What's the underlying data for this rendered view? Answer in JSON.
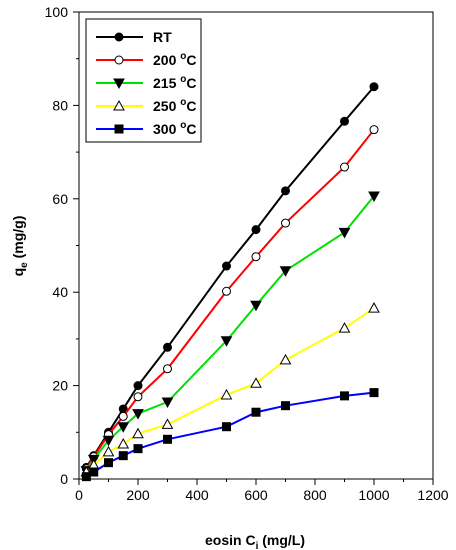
{
  "chart_data": {
    "type": "line",
    "xlabel": "eosin C",
    "xlabel_sub": "i",
    "xlabel_unit": " (mg/L)",
    "ylabel": "q",
    "ylabel_sub": "e",
    "ylabel_unit": " (mg/g)",
    "xlim": [
      0,
      1200
    ],
    "ylim": [
      0,
      100
    ],
    "xticks": [
      "0",
      "200",
      "400",
      "600",
      "800",
      "1000",
      "1200"
    ],
    "yticks": [
      "0",
      "20",
      "40",
      "60",
      "80",
      "100"
    ],
    "grid": false,
    "legend_position": "top-left",
    "x": [
      25,
      50,
      100,
      150,
      200,
      300,
      500,
      600,
      700,
      900,
      1000
    ],
    "series": [
      {
        "name": "RT",
        "suffix": "",
        "color": "#000000",
        "marker": "filled-circle",
        "values": [
          2.5,
          5.0,
          10.0,
          15.0,
          20.0,
          28.2,
          45.6,
          53.4,
          61.7,
          76.6,
          84.0
        ]
      },
      {
        "name": "200",
        "suffix": "C",
        "degree": "o",
        "color": "#ff0000",
        "marker": "open-circle",
        "values": [
          2.2,
          4.8,
          9.5,
          13.4,
          17.6,
          23.6,
          40.2,
          47.6,
          54.8,
          66.8,
          74.8
        ]
      },
      {
        "name": "215",
        "suffix": "C",
        "degree": "o",
        "color": "#00e000",
        "marker": "filled-triangle-down",
        "values": [
          1.8,
          4.2,
          8.3,
          11.2,
          14.0,
          16.5,
          29.6,
          37.2,
          44.6,
          52.8,
          60.6
        ]
      },
      {
        "name": "250",
        "suffix": "C",
        "degree": "o",
        "color": "#ffff00",
        "marker": "open-triangle-up",
        "values": [
          1.5,
          3.0,
          5.8,
          7.5,
          9.7,
          11.7,
          18.0,
          20.5,
          25.5,
          32.3,
          36.6
        ]
      },
      {
        "name": "300",
        "suffix": "C",
        "degree": "o",
        "color": "#0000ff",
        "marker": "filled-square",
        "values": [
          0.5,
          1.5,
          3.5,
          5.0,
          6.5,
          8.5,
          11.2,
          14.3,
          15.7,
          17.8,
          18.5
        ]
      }
    ]
  }
}
